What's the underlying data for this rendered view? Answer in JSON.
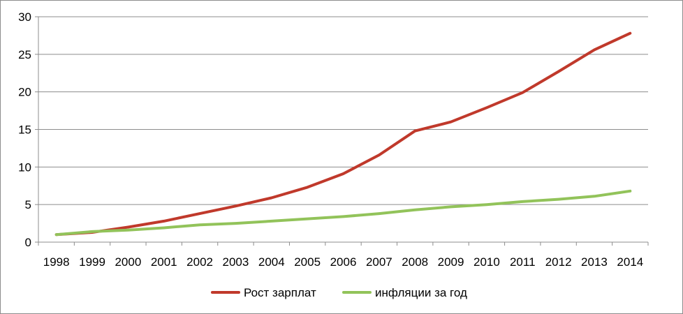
{
  "chart_data": {
    "type": "line",
    "title": "",
    "xlabel": "",
    "ylabel": "",
    "x": [
      "1998",
      "1999",
      "2000",
      "2001",
      "2002",
      "2003",
      "2004",
      "2005",
      "2006",
      "2007",
      "2008",
      "2009",
      "2010",
      "2011",
      "2012",
      "2013",
      "2014"
    ],
    "ylim": [
      0,
      30
    ],
    "yticks": [
      "0",
      "5",
      "10",
      "15",
      "20",
      "25",
      "30"
    ],
    "grid": "horizontal",
    "legend_position": "bottom",
    "series": [
      {
        "name": "Рост зарплат",
        "color": "#c0392b",
        "values": [
          1.0,
          1.3,
          2.0,
          2.8,
          3.8,
          4.8,
          5.9,
          7.3,
          9.1,
          11.6,
          14.8,
          16.0,
          17.9,
          19.9,
          22.7,
          25.6,
          27.8
        ]
      },
      {
        "name": "инфляции за год",
        "color": "#92c35a",
        "values": [
          1.0,
          1.4,
          1.6,
          1.9,
          2.3,
          2.5,
          2.8,
          3.1,
          3.4,
          3.8,
          4.3,
          4.7,
          5.0,
          5.4,
          5.7,
          6.1,
          6.8
        ]
      }
    ]
  }
}
